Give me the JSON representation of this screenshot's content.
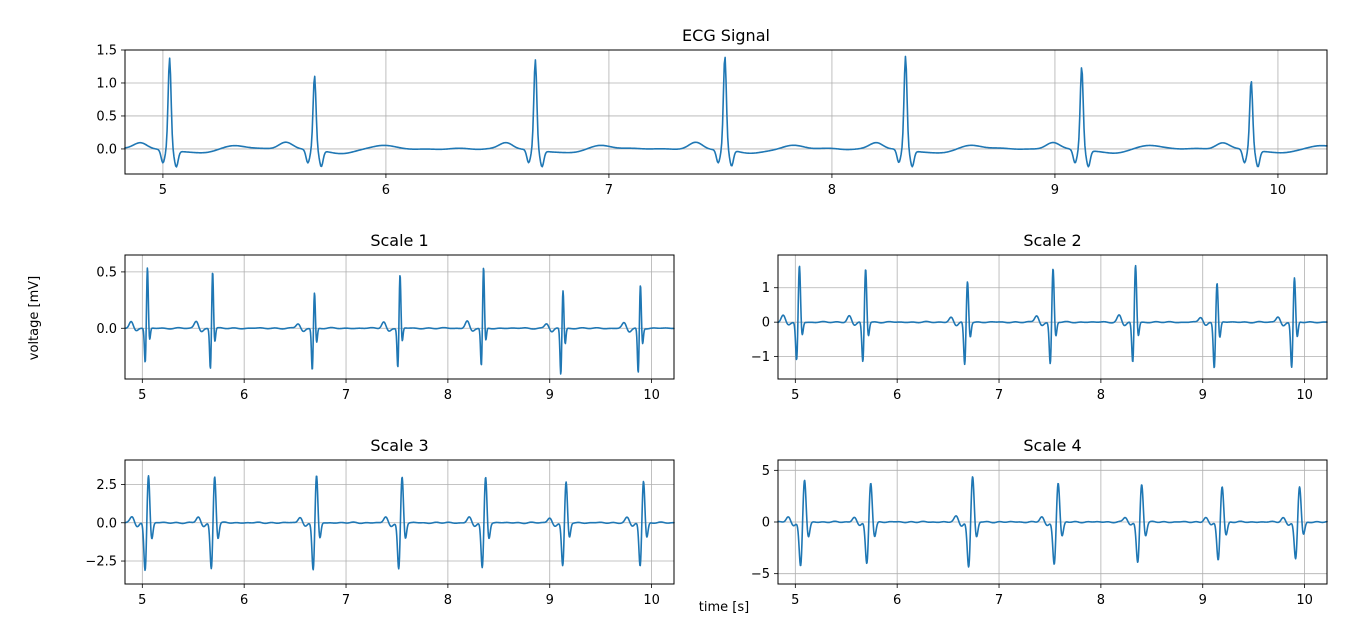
{
  "figure": {
    "xlabel": "time [s]",
    "ylabel": "voltage [mV]",
    "line_color": "#1f77b4",
    "grid": true
  },
  "chart_data": [
    {
      "type": "line",
      "title": "ECG Signal",
      "xlim": [
        4.83,
        10.22
      ],
      "ylim": [
        -0.38,
        1.5
      ],
      "xticks": [
        5,
        6,
        7,
        8,
        9,
        10
      ],
      "yticks": [
        0.0,
        0.5,
        1.0,
        1.5
      ],
      "ytick_labels": [
        "0.0",
        "0.5",
        "1.0",
        "1.5"
      ],
      "series": [
        {
          "baseline": 0.0,
          "beats": [
            {
              "t": 5.03,
              "peak": 1.4
            },
            {
              "t": 5.68,
              "peak": 1.13
            },
            {
              "t": 6.67,
              "peak": 1.37
            },
            {
              "t": 7.52,
              "peak": 1.42
            },
            {
              "t": 8.33,
              "peak": 1.42
            },
            {
              "t": 9.12,
              "peak": 1.27
            },
            {
              "t": 9.88,
              "peak": 1.06
            }
          ]
        }
      ]
    },
    {
      "type": "line",
      "title": "Scale 1",
      "xlim": [
        4.83,
        10.22
      ],
      "ylim": [
        -0.45,
        0.65
      ],
      "xticks": [
        5,
        6,
        7,
        8,
        9,
        10
      ],
      "yticks": [
        0.0,
        0.5
      ],
      "ytick_labels": [
        "0.0",
        "0.5"
      ],
      "series": [
        {
          "baseline": 0.0,
          "beats": [
            {
              "t": 5.05,
              "peak": 0.55,
              "trough": -0.32
            },
            {
              "t": 5.69,
              "peak": 0.52,
              "trough": -0.37
            },
            {
              "t": 6.69,
              "peak": 0.33,
              "trough": -0.38
            },
            {
              "t": 7.53,
              "peak": 0.49,
              "trough": -0.36
            },
            {
              "t": 8.35,
              "peak": 0.55,
              "trough": -0.35
            },
            {
              "t": 9.13,
              "peak": 0.35,
              "trough": -0.42
            },
            {
              "t": 9.89,
              "peak": 0.4,
              "trough": -0.41
            }
          ]
        }
      ]
    },
    {
      "type": "line",
      "title": "Scale 2",
      "xlim": [
        4.83,
        10.22
      ],
      "ylim": [
        -1.65,
        1.95
      ],
      "xticks": [
        5,
        6,
        7,
        8,
        9,
        10
      ],
      "yticks": [
        -1,
        0,
        1
      ],
      "ytick_labels": [
        "−1",
        "0",
        "1"
      ],
      "series": [
        {
          "baseline": 0.0,
          "beats": [
            {
              "t": 5.04,
              "peak": 1.68,
              "trough": -1.15
            },
            {
              "t": 5.69,
              "peak": 1.6,
              "trough": -1.2
            },
            {
              "t": 6.69,
              "peak": 1.23,
              "trough": -1.28
            },
            {
              "t": 7.53,
              "peak": 1.6,
              "trough": -1.25
            },
            {
              "t": 8.34,
              "peak": 1.7,
              "trough": -1.22
            },
            {
              "t": 9.14,
              "peak": 1.2,
              "trough": -1.35
            },
            {
              "t": 9.9,
              "peak": 1.33,
              "trough": -1.35
            }
          ]
        }
      ]
    },
    {
      "type": "line",
      "title": "Scale 3",
      "xlim": [
        4.83,
        10.22
      ],
      "ylim": [
        -4.0,
        4.1
      ],
      "xticks": [
        5,
        6,
        7,
        8,
        9,
        10
      ],
      "yticks": [
        -2.5,
        0.0,
        2.5
      ],
      "ytick_labels": [
        "−2.5",
        "0.0",
        "2.5"
      ],
      "series": [
        {
          "baseline": 0.0,
          "beats": [
            {
              "t": 5.06,
              "peak": 3.25,
              "trough": -3.2
            },
            {
              "t": 5.71,
              "peak": 3.15,
              "trough": -3.1
            },
            {
              "t": 6.71,
              "peak": 3.2,
              "trough": -3.15
            },
            {
              "t": 7.55,
              "peak": 3.1,
              "trough": -3.1
            },
            {
              "t": 8.37,
              "peak": 3.1,
              "trough": -3.05
            },
            {
              "t": 9.16,
              "peak": 2.75,
              "trough": -2.9
            },
            {
              "t": 9.92,
              "peak": 2.85,
              "trough": -2.9
            }
          ]
        }
      ]
    },
    {
      "type": "line",
      "title": "Scale 4",
      "xlim": [
        4.83,
        10.22
      ],
      "ylim": [
        -6.0,
        6.0
      ],
      "xticks": [
        5,
        6,
        7,
        8,
        9,
        10
      ],
      "yticks": [
        -5,
        0,
        5
      ],
      "ytick_labels": [
        "−5",
        "0",
        "5"
      ],
      "series": [
        {
          "baseline": 0.0,
          "beats": [
            {
              "t": 5.09,
              "peak": 4.2,
              "trough": -4.4
            },
            {
              "t": 5.74,
              "peak": 3.95,
              "trough": -4.2
            },
            {
              "t": 6.74,
              "peak": 4.6,
              "trough": -4.5
            },
            {
              "t": 7.58,
              "peak": 3.95,
              "trough": -4.2
            },
            {
              "t": 8.4,
              "peak": 3.8,
              "trough": -4.0
            },
            {
              "t": 9.19,
              "peak": 3.6,
              "trough": -3.8
            },
            {
              "t": 9.95,
              "peak": 3.55,
              "trough": -3.7
            }
          ]
        }
      ]
    }
  ]
}
